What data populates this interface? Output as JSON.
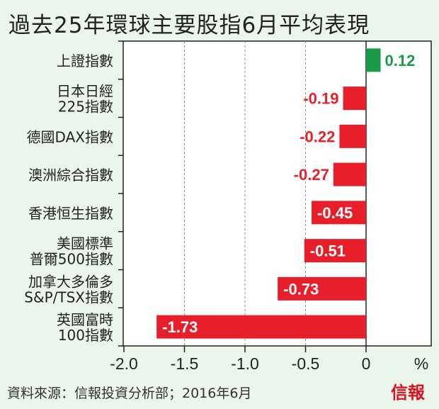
{
  "title": "過去25年環球主要股指6月平均表現",
  "source": "資料來源：信報投資分析部；2016年6月",
  "logo": "信報",
  "colors": {
    "positive": "#1a9b48",
    "negative": "#e61f2b",
    "background": "#eaf5ec"
  },
  "chart_data": {
    "type": "bar",
    "orientation": "horizontal",
    "title": "過去25年環球主要股指6月平均表現",
    "categories": [
      [
        "上證指數"
      ],
      [
        "日本日經",
        "225指數"
      ],
      [
        "德國DAX指數"
      ],
      [
        "澳洲綜合指數"
      ],
      [
        "香港恒生指數"
      ],
      [
        "美國標準",
        "普爾500指數"
      ],
      [
        "加拿大多倫多",
        "S&P/TSX指數"
      ],
      [
        "英國富時",
        "100指數"
      ]
    ],
    "values": [
      0.12,
      -0.19,
      -0.22,
      -0.27,
      -0.45,
      -0.51,
      -0.73,
      -1.73
    ],
    "value_labels": [
      "0.12",
      "-0.19",
      "-0.22",
      "-0.27",
      "-0.45",
      "-0.51",
      "-0.73",
      "-1.73"
    ],
    "xlim": [
      -2.0,
      0.5
    ],
    "xticks": [
      -2.0,
      -1.5,
      -1.0,
      -0.5,
      0
    ],
    "xtick_labels": [
      "-2.0",
      "-1.5",
      "-1.0",
      "-0.5",
      "0"
    ],
    "xlabel": "%",
    "grid": "vertical dashed"
  }
}
